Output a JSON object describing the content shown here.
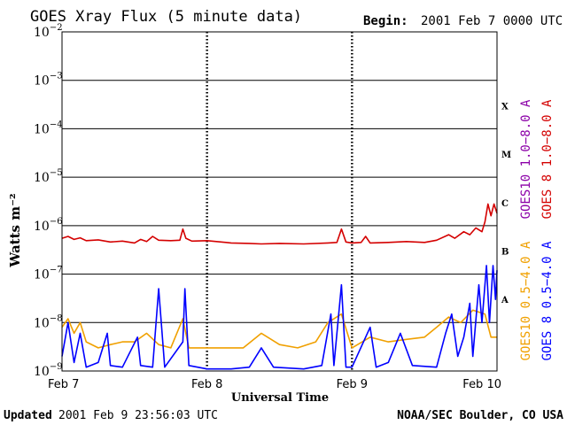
{
  "header": {
    "title": "GOES Xray Flux (5 minute data)",
    "begin_label": "Begin:",
    "begin_value": "2001 Feb 7 0000 UTC"
  },
  "footer": {
    "updated_label": "Updated",
    "updated_value": "2001 Feb  9 23:56:03 UTC",
    "credit": "NOAA/SEC Boulder, CO USA"
  },
  "colors": {
    "goes8_long": "#d40000",
    "goes8_short": "#0000ff",
    "goes10_long": "#8b00a8",
    "goes10_short": "#f0a000",
    "grid": "#000000"
  },
  "chart_data": {
    "type": "line",
    "title": "GOES Xray Flux (5 minute data)",
    "xlabel": "Universal Time",
    "ylabel": "Watts m⁻²",
    "y_scale": "log",
    "ylim": [
      1e-09,
      0.01
    ],
    "y_ticks": [
      {
        "value": 0.01,
        "base": "10",
        "exp": "−2"
      },
      {
        "value": 0.001,
        "base": "10",
        "exp": "−3"
      },
      {
        "value": 0.0001,
        "base": "10",
        "exp": "−4"
      },
      {
        "value": 1e-05,
        "base": "10",
        "exp": "−5"
      },
      {
        "value": 1e-06,
        "base": "10",
        "exp": "−6"
      },
      {
        "value": 1e-07,
        "base": "10",
        "exp": "−7"
      },
      {
        "value": 1e-08,
        "base": "10",
        "exp": "−8"
      },
      {
        "value": 1e-09,
        "base": "10",
        "exp": "−9"
      }
    ],
    "xlim": [
      "2001-02-07 00:00",
      "2001-02-10 00:00"
    ],
    "x_ticks": [
      {
        "value": "2001-02-07 00:00",
        "label": "Feb 7"
      },
      {
        "value": "2001-02-08 00:00",
        "label": "Feb 8"
      },
      {
        "value": "2001-02-09 00:00",
        "label": "Feb 9"
      },
      {
        "value": "2001-02-10 00:00",
        "label": "Feb 10"
      }
    ],
    "flare_classes": [
      {
        "label": "X",
        "value": 0.0003
      },
      {
        "label": "M",
        "value": 3e-05
      },
      {
        "label": "C",
        "value": 3e-06
      },
      {
        "label": "B",
        "value": 3e-07
      },
      {
        "label": "A",
        "value": 3e-08
      }
    ],
    "legend_placement": "right, rotated vertical",
    "legend": [
      {
        "name": "GOES10 1.0−8.0 A",
        "color": "#8b00a8"
      },
      {
        "name": "GOES 8 1.0−8.0 A",
        "color": "#d40000"
      },
      {
        "name": "GOES10 0.5−4.0 A",
        "color": "#f0a000"
      },
      {
        "name": "GOES 8 0.5−4.0 A",
        "color": "#0000ff"
      }
    ],
    "series": [
      {
        "name": "GOES 8 1.0−8.0 A",
        "color": "#d40000",
        "points": [
          [
            "2001-02-07 00:00",
            5.5e-07
          ],
          [
            "2001-02-07 01:00",
            6e-07
          ],
          [
            "2001-02-07 02:00",
            5.2e-07
          ],
          [
            "2001-02-07 03:00",
            5.6e-07
          ],
          [
            "2001-02-07 04:00",
            4.9e-07
          ],
          [
            "2001-02-07 06:00",
            5.1e-07
          ],
          [
            "2001-02-07 08:00",
            4.6e-07
          ],
          [
            "2001-02-07 10:00",
            4.8e-07
          ],
          [
            "2001-02-07 12:00",
            4.4e-07
          ],
          [
            "2001-02-07 13:00",
            5.2e-07
          ],
          [
            "2001-02-07 14:00",
            4.7e-07
          ],
          [
            "2001-02-07 15:00",
            6e-07
          ],
          [
            "2001-02-07 16:00",
            5e-07
          ],
          [
            "2001-02-07 18:00",
            4.9e-07
          ],
          [
            "2001-02-07 19:30",
            5e-07
          ],
          [
            "2001-02-07 20:00",
            8.5e-07
          ],
          [
            "2001-02-07 20:30",
            5.5e-07
          ],
          [
            "2001-02-07 21:30",
            4.8e-07
          ],
          [
            "2001-02-08 00:00",
            4.9e-07
          ],
          [
            "2001-02-08 04:00",
            4.4e-07
          ],
          [
            "2001-02-08 07:00",
            4.3e-07
          ],
          [
            "2001-02-08 09:00",
            4.2e-07
          ],
          [
            "2001-02-08 12:00",
            4.3e-07
          ],
          [
            "2001-02-08 16:00",
            4.2e-07
          ],
          [
            "2001-02-08 20:00",
            4.4e-07
          ],
          [
            "2001-02-08 21:30",
            4.5e-07
          ],
          [
            "2001-02-08 22:15",
            8.5e-07
          ],
          [
            "2001-02-08 23:00",
            4.6e-07
          ],
          [
            "2001-02-09 00:00",
            4.4e-07
          ],
          [
            "2001-02-09 01:30",
            4.5e-07
          ],
          [
            "2001-02-09 02:15",
            6e-07
          ],
          [
            "2001-02-09 03:00",
            4.4e-07
          ],
          [
            "2001-02-09 06:00",
            4.5e-07
          ],
          [
            "2001-02-09 09:00",
            4.7e-07
          ],
          [
            "2001-02-09 12:00",
            4.5e-07
          ],
          [
            "2001-02-09 14:00",
            5e-07
          ],
          [
            "2001-02-09 16:00",
            6.5e-07
          ],
          [
            "2001-02-09 17:00",
            5.5e-07
          ],
          [
            "2001-02-09 18:30",
            7.5e-07
          ],
          [
            "2001-02-09 19:30",
            6.5e-07
          ],
          [
            "2001-02-09 20:30",
            9e-07
          ],
          [
            "2001-02-09 21:30",
            7.5e-07
          ],
          [
            "2001-02-09 22:00",
            1.2e-06
          ],
          [
            "2001-02-09 22:30",
            2.8e-06
          ],
          [
            "2001-02-09 23:00",
            1.6e-06
          ],
          [
            "2001-02-09 23:30",
            2.8e-06
          ],
          [
            "2001-02-10 00:00",
            1.8e-06
          ]
        ]
      },
      {
        "name": "GOES10 0.5−4.0 A",
        "color": "#f0a000",
        "points": [
          [
            "2001-02-07 00:00",
            8e-09
          ],
          [
            "2001-02-07 01:00",
            1.2e-08
          ],
          [
            "2001-02-07 02:00",
            6e-09
          ],
          [
            "2001-02-07 03:00",
            1e-08
          ],
          [
            "2001-02-07 04:00",
            4e-09
          ],
          [
            "2001-02-07 06:00",
            3e-09
          ],
          [
            "2001-02-07 08:00",
            3.5e-09
          ],
          [
            "2001-02-07 10:00",
            4e-09
          ],
          [
            "2001-02-07 12:00",
            4e-09
          ],
          [
            "2001-02-07 14:00",
            6e-09
          ],
          [
            "2001-02-07 16:00",
            3.5e-09
          ],
          [
            "2001-02-07 18:00",
            3e-09
          ],
          [
            "2001-02-07 20:00",
            1.2e-08
          ],
          [
            "2001-02-07 21:00",
            3e-09
          ],
          [
            "2001-02-08 00:00",
            3e-09
          ],
          [
            "2001-02-08 03:00",
            3e-09
          ],
          [
            "2001-02-08 06:00",
            3e-09
          ],
          [
            "2001-02-08 09:00",
            6e-09
          ],
          [
            "2001-02-08 12:00",
            3.5e-09
          ],
          [
            "2001-02-08 15:00",
            3e-09
          ],
          [
            "2001-02-08 18:00",
            4e-09
          ],
          [
            "2001-02-08 20:00",
            1e-08
          ],
          [
            "2001-02-08 22:15",
            1.5e-08
          ],
          [
            "2001-02-09 00:00",
            3e-09
          ],
          [
            "2001-02-09 03:00",
            5e-09
          ],
          [
            "2001-02-09 06:00",
            4e-09
          ],
          [
            "2001-02-09 09:00",
            4.5e-09
          ],
          [
            "2001-02-09 12:00",
            5e-09
          ],
          [
            "2001-02-09 14:00",
            8e-09
          ],
          [
            "2001-02-09 16:00",
            1.3e-08
          ],
          [
            "2001-02-09 18:00",
            1e-08
          ],
          [
            "2001-02-09 20:00",
            1.8e-08
          ],
          [
            "2001-02-09 22:00",
            1.5e-08
          ],
          [
            "2001-02-09 23:00",
            5e-09
          ],
          [
            "2001-02-10 00:00",
            5e-09
          ]
        ]
      },
      {
        "name": "GOES 8 0.5−4.0 A",
        "color": "#0000ff",
        "points": [
          [
            "2001-02-07 00:00",
            2e-09
          ],
          [
            "2001-02-07 01:00",
            1e-08
          ],
          [
            "2001-02-07 02:00",
            1.5e-09
          ],
          [
            "2001-02-07 03:00",
            6e-09
          ],
          [
            "2001-02-07 04:00",
            1.2e-09
          ],
          [
            "2001-02-07 06:00",
            1.5e-09
          ],
          [
            "2001-02-07 07:30",
            6e-09
          ],
          [
            "2001-02-07 08:00",
            1.3e-09
          ],
          [
            "2001-02-07 10:00",
            1.2e-09
          ],
          [
            "2001-02-07 12:30",
            5e-09
          ],
          [
            "2001-02-07 13:00",
            1.3e-09
          ],
          [
            "2001-02-07 15:00",
            1.2e-09
          ],
          [
            "2001-02-07 16:00",
            5e-08
          ],
          [
            "2001-02-07 17:00",
            1.2e-09
          ],
          [
            "2001-02-07 20:00",
            4e-09
          ],
          [
            "2001-02-07 20:20",
            5e-08
          ],
          [
            "2001-02-07 21:00",
            1.3e-09
          ],
          [
            "2001-02-08 00:00",
            1.1e-09
          ],
          [
            "2001-02-08 04:00",
            1.1e-09
          ],
          [
            "2001-02-08 07:00",
            1.2e-09
          ],
          [
            "2001-02-08 09:00",
            3e-09
          ],
          [
            "2001-02-08 11:00",
            1.2e-09
          ],
          [
            "2001-02-08 16:00",
            1.1e-09
          ],
          [
            "2001-02-08 19:00",
            1.3e-09
          ],
          [
            "2001-02-08 20:30",
            1.5e-08
          ],
          [
            "2001-02-08 21:00",
            1.3e-09
          ],
          [
            "2001-02-08 22:15",
            6e-08
          ],
          [
            "2001-02-08 23:00",
            1.2e-09
          ],
          [
            "2001-02-09 00:00",
            1.2e-09
          ],
          [
            "2001-02-09 03:00",
            8e-09
          ],
          [
            "2001-02-09 04:00",
            1.2e-09
          ],
          [
            "2001-02-09 06:00",
            1.5e-09
          ],
          [
            "2001-02-09 08:00",
            6e-09
          ],
          [
            "2001-02-09 10:00",
            1.3e-09
          ],
          [
            "2001-02-09 14:00",
            1.2e-09
          ],
          [
            "2001-02-09 15:30",
            6e-09
          ],
          [
            "2001-02-09 16:30",
            1.5e-08
          ],
          [
            "2001-02-09 17:30",
            2e-09
          ],
          [
            "2001-02-09 18:30",
            5e-09
          ],
          [
            "2001-02-09 19:30",
            2.5e-08
          ],
          [
            "2001-02-09 20:00",
            2e-09
          ],
          [
            "2001-02-09 21:00",
            6e-08
          ],
          [
            "2001-02-09 21:30",
            1e-08
          ],
          [
            "2001-02-09 22:15",
            1.5e-07
          ],
          [
            "2001-02-09 22:45",
            1e-08
          ],
          [
            "2001-02-09 23:20",
            1.5e-07
          ],
          [
            "2001-02-09 23:45",
            3e-08
          ],
          [
            "2001-02-10 00:00",
            1.2e-07
          ]
        ]
      }
    ]
  }
}
